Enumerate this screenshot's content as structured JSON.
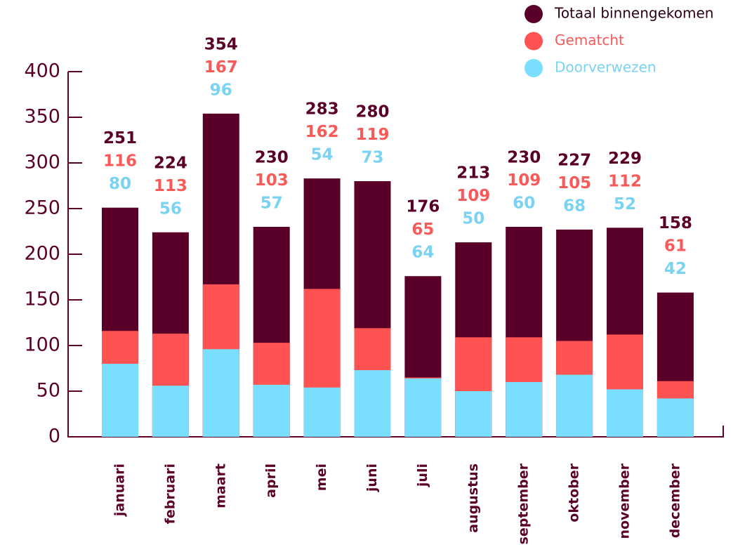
{
  "chart_data": {
    "type": "bar",
    "overlap": true,
    "categories": [
      "januari",
      "februari",
      "maart",
      "april",
      "mei",
      "juni",
      "juli",
      "augustus",
      "september",
      "oktober",
      "november",
      "december"
    ],
    "series": [
      {
        "name": "Totaal binnengekomen",
        "color": "#5a0028",
        "values": [
          251,
          224,
          354,
          230,
          283,
          280,
          176,
          213,
          230,
          227,
          229,
          158
        ]
      },
      {
        "name": "Gematcht",
        "color": "#ff5252",
        "values": [
          116,
          113,
          167,
          103,
          162,
          119,
          65,
          109,
          109,
          105,
          112,
          61
        ]
      },
      {
        "name": "Doorverwezen",
        "color": "#7adfff",
        "values": [
          80,
          56,
          96,
          57,
          54,
          73,
          64,
          50,
          60,
          68,
          52,
          42
        ]
      }
    ],
    "ylim": [
      0,
      400
    ],
    "yticks": [
      0,
      50,
      100,
      150,
      200,
      250,
      300,
      350,
      400
    ],
    "legend": "top-right"
  }
}
